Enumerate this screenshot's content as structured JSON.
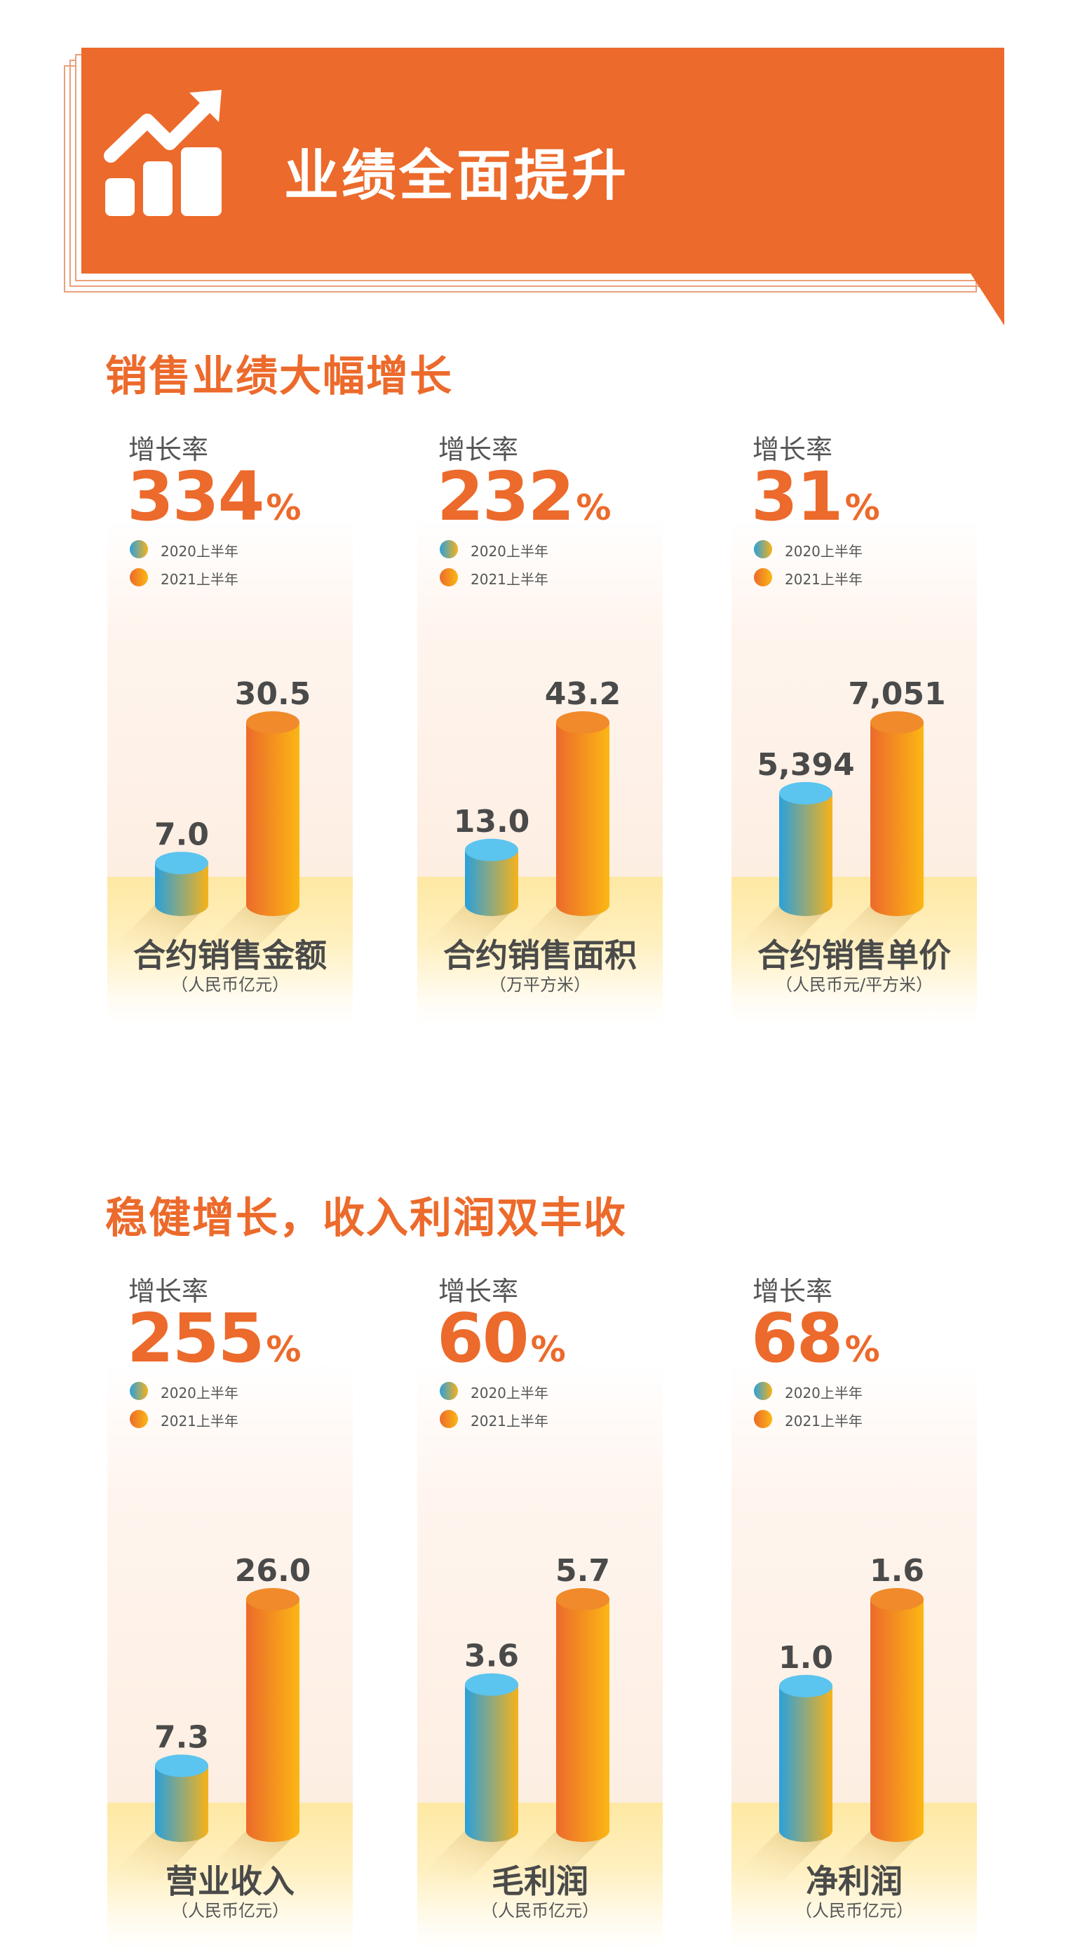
{
  "banner": {
    "title": "业绩全面提升"
  },
  "sections": [
    {
      "title": "销售业绩大幅增长",
      "panels": [
        {
          "growth_label": "增长率",
          "growth_value": "334",
          "growth_unit": "%",
          "legend": [
            "2020上半年",
            "2021上半年"
          ],
          "title": "合约销售金额",
          "unit": "（人民币亿元）",
          "values": [
            7.0,
            30.5
          ],
          "value_labels": [
            "7.0",
            "30.5"
          ]
        },
        {
          "growth_label": "增长率",
          "growth_value": "232",
          "growth_unit": "%",
          "legend": [
            "2020上半年",
            "2021上半年"
          ],
          "title": "合约销售面积",
          "unit": "（万平方米）",
          "values": [
            13.0,
            43.2
          ],
          "value_labels": [
            "13.0",
            "43.2"
          ]
        },
        {
          "growth_label": "增长率",
          "growth_value": "31",
          "growth_unit": "%",
          "legend": [
            "2020上半年",
            "2021上半年"
          ],
          "title": "合约销售单价",
          "unit": "（人民币元/平方米）",
          "values": [
            5394,
            7051
          ],
          "value_labels": [
            "5,394",
            "7,051"
          ]
        }
      ]
    },
    {
      "title": "稳健增长，收入利润双丰收",
      "panels": [
        {
          "growth_label": "增长率",
          "growth_value": "255",
          "growth_unit": "%",
          "legend": [
            "2020上半年",
            "2021上半年"
          ],
          "title": "营业收入",
          "unit": "（人民币亿元）",
          "values": [
            7.3,
            26.0
          ],
          "value_labels": [
            "7.3",
            "26.0"
          ]
        },
        {
          "growth_label": "增长率",
          "growth_value": "60",
          "growth_unit": "%",
          "legend": [
            "2020上半年",
            "2021上半年"
          ],
          "title": "毛利润",
          "unit": "（人民币亿元）",
          "values": [
            3.6,
            5.7
          ],
          "value_labels": [
            "3.6",
            "5.7"
          ]
        },
        {
          "growth_label": "增长率",
          "growth_value": "68",
          "growth_unit": "%",
          "legend": [
            "2020上半年",
            "2021上半年"
          ],
          "title": "净利润",
          "unit": "（人民币亿元）",
          "values": [
            1.0,
            1.6
          ],
          "value_labels": [
            "1.0",
            "1.6"
          ]
        }
      ]
    }
  ],
  "colors": {
    "accent": "#ec6a2b",
    "bar_2020_top": "#5bc4ef",
    "bar_2020_left": "#2aa0dc",
    "bar_2020_right": "#f7b21a",
    "bar_2021_top": "#f08a2a",
    "bar_2021_left": "#ec6a2b",
    "bar_2021_right": "#fbb714",
    "text": "#4a4a4a"
  },
  "chart_data": [
    {
      "type": "bar",
      "title": "合约销售金额",
      "ylabel": "（人民币亿元）",
      "categories": [
        "2020上半年",
        "2021上半年"
      ],
      "values": [
        7.0,
        30.5
      ]
    },
    {
      "type": "bar",
      "title": "合约销售面积",
      "ylabel": "（万平方米）",
      "categories": [
        "2020上半年",
        "2021上半年"
      ],
      "values": [
        13.0,
        43.2
      ]
    },
    {
      "type": "bar",
      "title": "合约销售单价",
      "ylabel": "（人民币元/平方米）",
      "categories": [
        "2020上半年",
        "2021上半年"
      ],
      "values": [
        5394,
        7051
      ]
    },
    {
      "type": "bar",
      "title": "营业收入",
      "ylabel": "（人民币亿元）",
      "categories": [
        "2020上半年",
        "2021上半年"
      ],
      "values": [
        7.3,
        26.0
      ]
    },
    {
      "type": "bar",
      "title": "毛利润",
      "ylabel": "（人民币亿元）",
      "categories": [
        "2020上半年",
        "2021上半年"
      ],
      "values": [
        3.6,
        5.7
      ]
    },
    {
      "type": "bar",
      "title": "净利润",
      "ylabel": "（人民币亿元）",
      "categories": [
        "2020上半年",
        "2021上半年"
      ],
      "values": [
        1.0,
        1.6
      ]
    }
  ]
}
